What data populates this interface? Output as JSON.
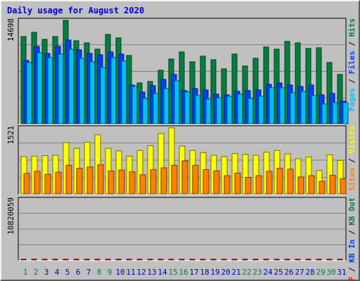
{
  "chart_data": {
    "type": "bar",
    "title": "Daily usage for August 2020",
    "days": [
      "1",
      "2",
      "3",
      "4",
      "5",
      "6",
      "7",
      "8",
      "9",
      "10",
      "11",
      "12",
      "13",
      "14",
      "15",
      "16",
      "17",
      "18",
      "19",
      "20",
      "21",
      "22",
      "23",
      "24",
      "25",
      "26",
      "27",
      "28",
      "29",
      "30",
      "31"
    ],
    "weekend_days": [
      "1",
      "2",
      "8",
      "9",
      "15",
      "16",
      "22",
      "23",
      "29",
      "30"
    ],
    "panels": [
      {
        "name": "hits-files-pages",
        "ymax_label": "14698",
        "ymax": 14698,
        "series": [
          {
            "name": "Hits",
            "color": "#008040",
            "values": [
              12400,
              13000,
              12000,
              12400,
              14698,
              11800,
              11500,
              10600,
              12700,
              12200,
              9700,
              5800,
              6000,
              7600,
              9200,
              10200,
              8800,
              9600,
              9100,
              7800,
              9900,
              8200,
              9300,
              10900,
              10600,
              11700,
              11500,
              10700,
              10800,
              8700,
              7000
            ]
          },
          {
            "name": "Files",
            "color": "#0040ff",
            "values": [
              9000,
              11000,
              10000,
              11000,
              11900,
              10500,
              10000,
              9800,
              10200,
              9900,
              5500,
              4500,
              5400,
              6300,
              7000,
              4700,
              5000,
              4800,
              4200,
              4100,
              4600,
              4700,
              4800,
              5600,
              5800,
              5500,
              5300,
              5500,
              4100,
              4300,
              3200
            ]
          },
          {
            "name": "Pages",
            "color": "#00c0ff",
            "values": [
              8700,
              10100,
              9400,
              9900,
              10600,
              9300,
              8800,
              8000,
              9400,
              8900,
              5300,
              3600,
              4300,
              5000,
              6100,
              4500,
              4000,
              3500,
              3700,
              3900,
              4200,
              3600,
              3900,
              5100,
              5100,
              4400,
              4600,
              4000,
              2800,
              3000,
              3000
            ]
          }
        ]
      },
      {
        "name": "visits-sites",
        "ymax_label": "1521",
        "ymax": 1521,
        "series": [
          {
            "name": "Visits",
            "color": "#ffff00",
            "values": [
              860,
              870,
              880,
              890,
              1180,
              1050,
              1190,
              1360,
              1050,
              990,
              870,
              1000,
              1110,
              1390,
              1521,
              1100,
              1000,
              950,
              890,
              860,
              930,
              910,
              890,
              960,
              1000,
              920,
              810,
              850,
              540,
              900,
              770
            ]
          },
          {
            "name": "Sites",
            "color": "#ff8000",
            "values": [
              470,
              520,
              450,
              500,
              660,
              590,
              620,
              670,
              530,
              550,
              510,
              440,
              560,
              600,
              660,
              760,
              660,
              560,
              530,
              420,
              480,
              380,
              420,
              520,
              590,
              570,
              390,
              420,
              290,
              430,
              350
            ]
          }
        ]
      },
      {
        "name": "kbytes",
        "ymax_label": "10820059",
        "ymax": 10820059,
        "series": [
          {
            "name": "KBytes",
            "color": "#ff0000",
            "values": [
              4500,
              4700,
              4700,
              3600,
              3400,
              3300,
              4900,
              3900,
              6200,
              6500,
              4400,
              4400,
              3700,
              4400,
              4600,
              7300,
              8400,
              7800,
              6900,
              8500,
              8200,
              7600,
              9000,
              6900,
              10820,
              8600,
              7300,
              6600,
              6400,
              6300,
              3500
            ]
          }
        ]
      }
    ],
    "right_labels": [
      {
        "panel": 0,
        "parts": [
          {
            "text": "Pages",
            "color": "#00c0ff"
          },
          {
            "text": " / ",
            "color": "#000000"
          },
          {
            "text": "Files",
            "color": "#0040ff"
          },
          {
            "text": " / ",
            "color": "#000000"
          },
          {
            "text": "Hits",
            "color": "#008040"
          }
        ]
      },
      {
        "panel": 1,
        "parts": [
          {
            "text": "Sites",
            "color": "#ff8000"
          },
          {
            "text": " / ",
            "color": "#000000"
          },
          {
            "text": "Visits",
            "color": "#ffff00"
          }
        ]
      },
      {
        "panel": 2,
        "parts": [
          {
            "text": "KB F",
            "color": "#ff0000"
          },
          {
            "text": " / ",
            "color": "#000000"
          },
          {
            "text": "KB In",
            "color": "#0040ff"
          },
          {
            "text": " / ",
            "color": "#000000"
          },
          {
            "text": "KB Out",
            "color": "#008040"
          }
        ]
      }
    ],
    "colors": {
      "background": "#c0c0c0",
      "title": "#0000cc",
      "weekday_label": "#0000cc",
      "weekend_label": "#00804a",
      "grid": "#808080"
    },
    "grid": true,
    "legend_position": "right, vertical"
  }
}
